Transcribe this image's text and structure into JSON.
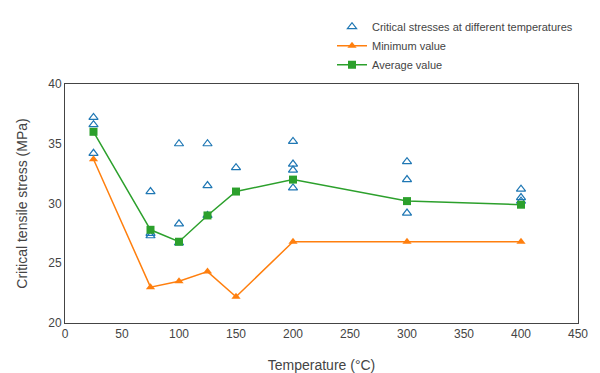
{
  "chart_data": {
    "type": "scatter",
    "xlabel": "Temperature (°C)",
    "ylabel": "Critical tensile stress (MPa)",
    "xlim": [
      0,
      450
    ],
    "ylim": [
      20,
      40
    ],
    "xticks": [
      0,
      50,
      100,
      150,
      200,
      250,
      300,
      350,
      400,
      450
    ],
    "yticks": [
      20,
      25,
      30,
      35,
      40
    ],
    "grid": false,
    "legend": "upper right",
    "series": [
      {
        "name": "Critical stresses at different temperatures",
        "type": "scatter",
        "marker": "triangle-open",
        "x": [
          25,
          25,
          25,
          75,
          75,
          75,
          100,
          100,
          100,
          125,
          125,
          125,
          150,
          200,
          200,
          200,
          200,
          300,
          300,
          300,
          400,
          400,
          400
        ],
        "values": [
          37.2,
          36.6,
          34.2,
          31.0,
          27.5,
          27.3,
          35.0,
          28.3,
          26.7,
          35.0,
          31.5,
          29.0,
          33.0,
          35.2,
          33.3,
          32.8,
          31.3,
          33.5,
          32.0,
          29.2,
          31.2,
          30.5,
          30.2
        ]
      },
      {
        "name": "Minimum value",
        "type": "line",
        "marker": "triangle",
        "line_style": "solid",
        "x": [
          25,
          75,
          100,
          125,
          150,
          200,
          300,
          400
        ],
        "values": [
          33.7,
          23.0,
          23.5,
          24.3,
          22.2,
          26.8,
          26.8,
          26.8
        ]
      },
      {
        "name": "Average value",
        "type": "line",
        "marker": "square",
        "line_style": "solid",
        "x": [
          25,
          75,
          100,
          125,
          150,
          200,
          300,
          400
        ],
        "values": [
          36.0,
          27.8,
          26.8,
          29.0,
          31.0,
          32.0,
          30.2,
          29.9
        ]
      }
    ]
  }
}
